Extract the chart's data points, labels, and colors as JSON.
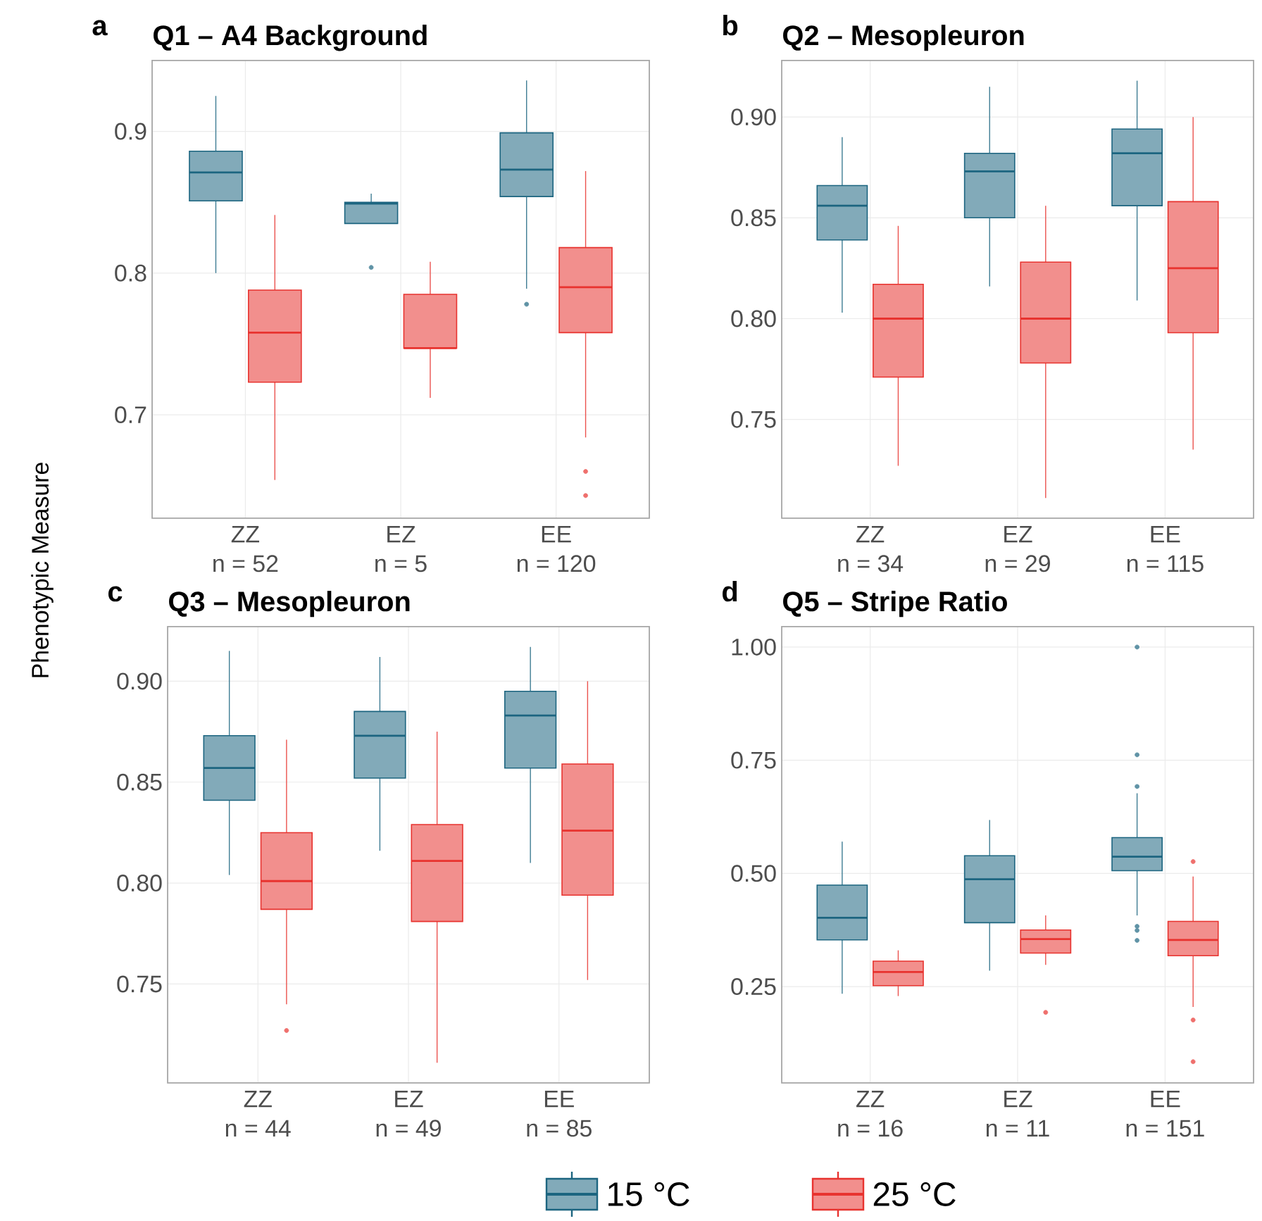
{
  "chart_data": [
    {
      "type": "box",
      "title": "Q1 – A4 Background",
      "ylabel": "Phenotypic Measure",
      "annotations": [
        "a",
        "n = 52",
        "n = 5",
        "n = 120"
      ],
      "categories": [
        "ZZ",
        "EZ",
        "EE"
      ],
      "ylim": [
        0.627,
        0.95
      ],
      "yticks": [
        0.7,
        0.8,
        0.9
      ],
      "grid": true,
      "series": [
        {
          "color": "#1c6580",
          "boxes": [
            {
              "low": 0.8,
              "q1": 0.851,
              "median": 0.871,
              "q3": 0.886,
              "high": 0.925
            },
            {
              "low": 0.835,
              "q1": 0.835,
              "median": 0.849,
              "q3": 0.85,
              "high": 0.856,
              "outliers": [
                0.804
              ]
            },
            {
              "low": 0.789,
              "q1": 0.854,
              "median": 0.873,
              "q3": 0.899,
              "high": 0.936,
              "outliers": [
                0.778
              ]
            }
          ]
        },
        {
          "color": "#e8332f",
          "boxes": [
            {
              "low": 0.654,
              "q1": 0.723,
              "median": 0.758,
              "q3": 0.788,
              "high": 0.841
            },
            {
              "low": 0.712,
              "q1": 0.747,
              "median": 0.747,
              "q3": 0.785,
              "high": 0.808
            },
            {
              "low": 0.684,
              "q1": 0.758,
              "median": 0.79,
              "q3": 0.818,
              "high": 0.872,
              "outliers": [
                0.66,
                0.643
              ]
            }
          ]
        }
      ]
    },
    {
      "type": "box",
      "title": "Q2 – Mesopleuron",
      "annotations": [
        "b",
        "n = 34",
        "n = 29",
        "n = 115"
      ],
      "categories": [
        "ZZ",
        "EZ",
        "EE"
      ],
      "ylim": [
        0.701,
        0.928
      ],
      "yticks": [
        0.75,
        {
          "value": 0.8,
          "label": "0.80"
        },
        0.85,
        {
          "value": 0.9,
          "label": "0.90"
        }
      ],
      "grid": true,
      "series": [
        {
          "color": "#1c6580",
          "boxes": [
            {
              "low": 0.803,
              "q1": 0.839,
              "median": 0.856,
              "q3": 0.866,
              "high": 0.89
            },
            {
              "low": 0.816,
              "q1": 0.85,
              "median": 0.873,
              "q3": 0.882,
              "high": 0.915
            },
            {
              "low": 0.809,
              "q1": 0.856,
              "median": 0.882,
              "q3": 0.894,
              "high": 0.918
            }
          ]
        },
        {
          "color": "#e8332f",
          "boxes": [
            {
              "low": 0.727,
              "q1": 0.771,
              "median": 0.8,
              "q3": 0.817,
              "high": 0.846
            },
            {
              "low": 0.711,
              "q1": 0.778,
              "median": 0.8,
              "q3": 0.828,
              "high": 0.856
            },
            {
              "low": 0.735,
              "q1": 0.793,
              "median": 0.825,
              "q3": 0.858,
              "high": 0.9
            }
          ]
        }
      ]
    },
    {
      "type": "box",
      "title": "Q3 – Mesopleuron",
      "annotations": [
        "c",
        "n = 44",
        "n = 49",
        "n = 85"
      ],
      "categories": [
        "ZZ",
        "EZ",
        "EE"
      ],
      "ylim": [
        0.701,
        0.927
      ],
      "yticks": [
        0.75,
        {
          "value": 0.8,
          "label": "0.80"
        },
        0.85,
        {
          "value": 0.9,
          "label": "0.90"
        }
      ],
      "grid": true,
      "legend": "bottom",
      "series": [
        {
          "name": "15 °C",
          "color": "#1c6580",
          "boxes": [
            {
              "low": 0.804,
              "q1": 0.841,
              "median": 0.857,
              "q3": 0.873,
              "high": 0.915
            },
            {
              "low": 0.816,
              "q1": 0.852,
              "median": 0.873,
              "q3": 0.885,
              "high": 0.912
            },
            {
              "low": 0.81,
              "q1": 0.857,
              "median": 0.883,
              "q3": 0.895,
              "high": 0.917
            }
          ]
        },
        {
          "name": "25 °C",
          "color": "#e8332f",
          "boxes": [
            {
              "low": 0.74,
              "q1": 0.787,
              "median": 0.801,
              "q3": 0.825,
              "high": 0.871,
              "outliers": [
                0.727
              ]
            },
            {
              "low": 0.711,
              "q1": 0.781,
              "median": 0.811,
              "q3": 0.829,
              "high": 0.875
            },
            {
              "low": 0.752,
              "q1": 0.794,
              "median": 0.826,
              "q3": 0.859,
              "high": 0.9
            }
          ]
        }
      ]
    },
    {
      "type": "box",
      "title": "Q5 – Stripe Ratio",
      "annotations": [
        "d",
        "n = 16",
        "n = 11",
        "n = 151"
      ],
      "categories": [
        "ZZ",
        "EZ",
        "EE"
      ],
      "ylim": [
        0.037,
        1.045
      ],
      "yticks": [
        {
          "value": 0.25,
          "label": "0.25"
        },
        {
          "value": 0.5,
          "label": "0.50"
        },
        {
          "value": 0.75,
          "label": "0.75"
        },
        {
          "value": 1,
          "label": "1.00"
        }
      ],
      "grid": true,
      "series": [
        {
          "color": "#1c6580",
          "boxes": [
            {
              "low": 0.234,
              "q1": 0.353,
              "median": 0.402,
              "q3": 0.474,
              "high": 0.57
            },
            {
              "low": 0.285,
              "q1": 0.391,
              "median": 0.487,
              "q3": 0.539,
              "high": 0.618
            },
            {
              "low": 0.407,
              "q1": 0.506,
              "median": 0.537,
              "q3": 0.579,
              "high": 0.677,
              "outliers": [
                1.0,
                0.762,
                0.692,
                0.383,
                0.374,
                0.352
              ]
            }
          ]
        },
        {
          "color": "#e8332f",
          "boxes": [
            {
              "low": 0.229,
              "q1": 0.252,
              "median": 0.282,
              "q3": 0.306,
              "high": 0.33
            },
            {
              "low": 0.298,
              "q1": 0.324,
              "median": 0.355,
              "q3": 0.375,
              "high": 0.407,
              "outliers": [
                0.193
              ]
            },
            {
              "low": 0.205,
              "q1": 0.318,
              "median": 0.353,
              "q3": 0.394,
              "high": 0.493,
              "outliers": [
                0.526,
                0.176,
                0.084
              ]
            }
          ]
        }
      ]
    }
  ]
}
